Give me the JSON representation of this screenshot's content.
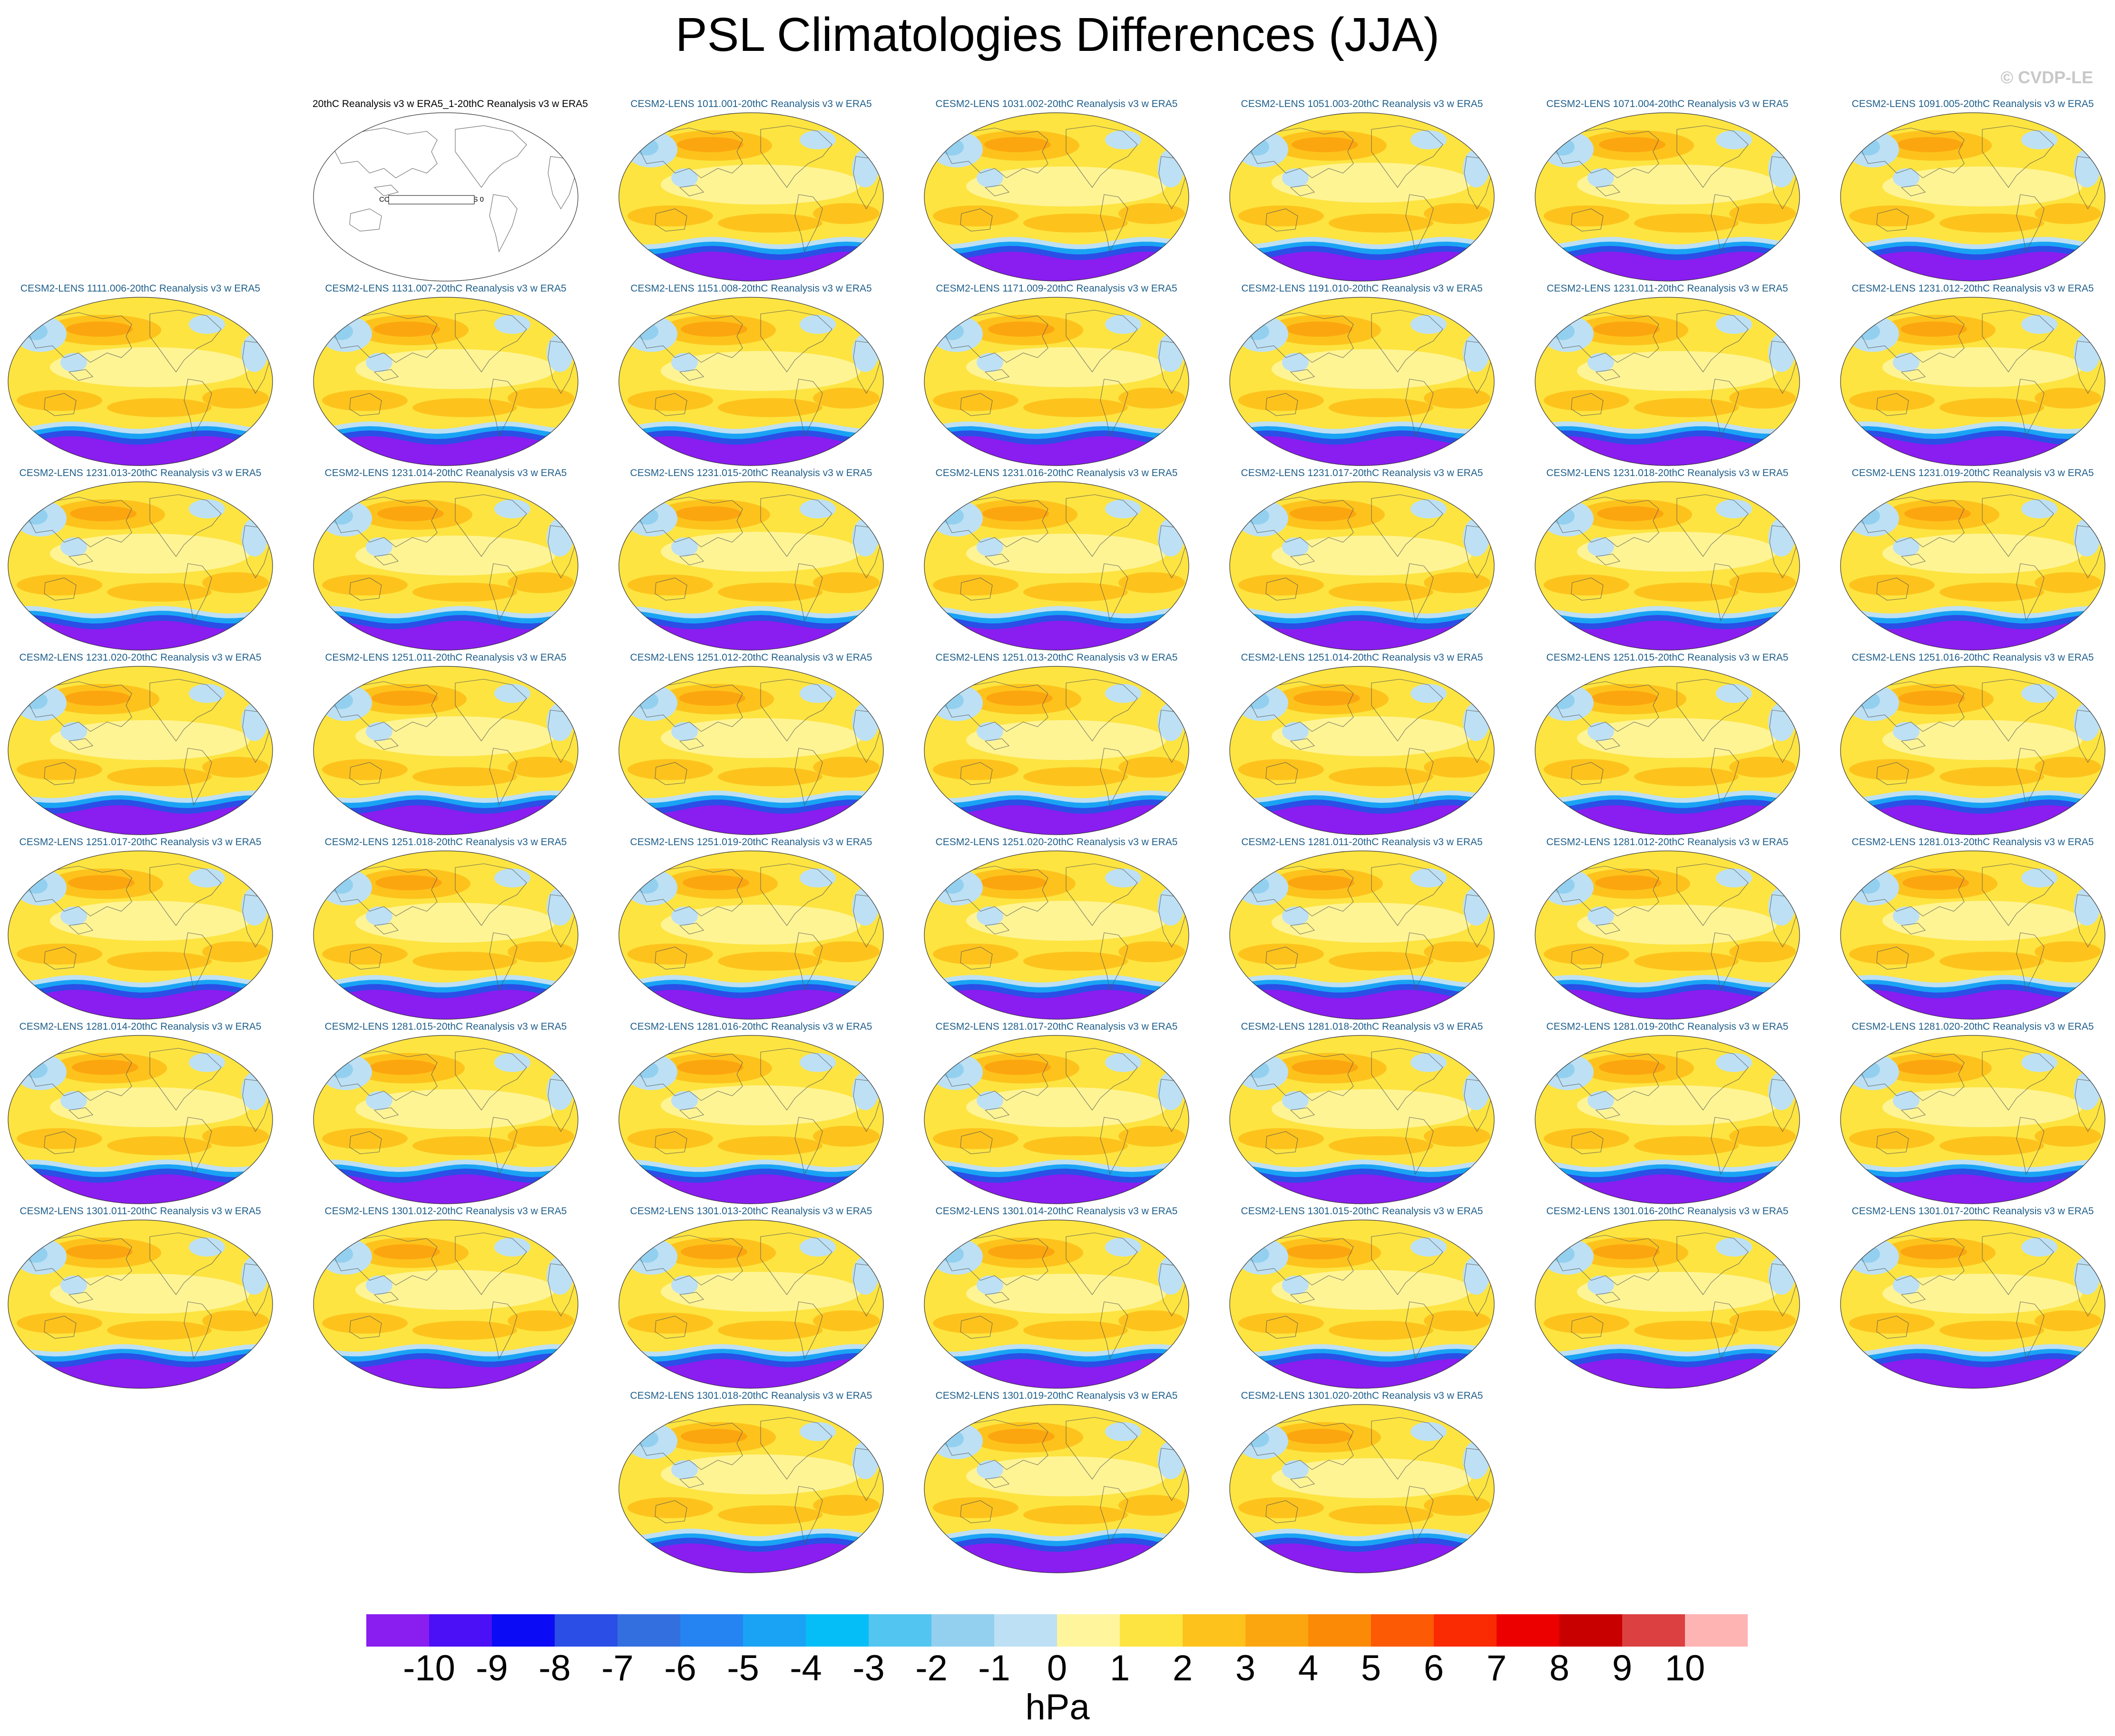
{
  "title": "PSL Climatologies Differences (JJA)",
  "watermark": "© CVDP-LE",
  "constant_field_label": "CONSTANT FIELD - VALUE IS 0",
  "panels": [
    {
      "title": "20thC Reanalysis v3 w ERA5_1-20thC Reanalysis v3 w ERA5",
      "constant": true
    },
    {
      "title": "CESM2-LENS 1011.001-20thC Reanalysis v3 w ERA5"
    },
    {
      "title": "CESM2-LENS 1031.002-20thC Reanalysis v3 w ERA5"
    },
    {
      "title": "CESM2-LENS 1051.003-20thC Reanalysis v3 w ERA5"
    },
    {
      "title": "CESM2-LENS 1071.004-20thC Reanalysis v3 w ERA5"
    },
    {
      "title": "CESM2-LENS 1091.005-20thC Reanalysis v3 w ERA5"
    },
    {
      "title": "CESM2-LENS 1111.006-20thC Reanalysis v3 w ERA5"
    },
    {
      "title": "CESM2-LENS 1131.007-20thC Reanalysis v3 w ERA5"
    },
    {
      "title": "CESM2-LENS 1151.008-20thC Reanalysis v3 w ERA5"
    },
    {
      "title": "CESM2-LENS 1171.009-20thC Reanalysis v3 w ERA5"
    },
    {
      "title": "CESM2-LENS 1191.010-20thC Reanalysis v3 w ERA5"
    },
    {
      "title": "CESM2-LENS 1231.011-20thC Reanalysis v3 w ERA5"
    },
    {
      "title": "CESM2-LENS 1231.012-20thC Reanalysis v3 w ERA5"
    },
    {
      "title": "CESM2-LENS 1231.013-20thC Reanalysis v3 w ERA5"
    },
    {
      "title": "CESM2-LENS 1231.014-20thC Reanalysis v3 w ERA5"
    },
    {
      "title": "CESM2-LENS 1231.015-20thC Reanalysis v3 w ERA5"
    },
    {
      "title": "CESM2-LENS 1231.016-20thC Reanalysis v3 w ERA5"
    },
    {
      "title": "CESM2-LENS 1231.017-20thC Reanalysis v3 w ERA5"
    },
    {
      "title": "CESM2-LENS 1231.018-20thC Reanalysis v3 w ERA5"
    },
    {
      "title": "CESM2-LENS 1231.019-20thC Reanalysis v3 w ERA5"
    },
    {
      "title": "CESM2-LENS 1231.020-20thC Reanalysis v3 w ERA5"
    },
    {
      "title": "CESM2-LENS 1251.011-20thC Reanalysis v3 w ERA5"
    },
    {
      "title": "CESM2-LENS 1251.012-20thC Reanalysis v3 w ERA5"
    },
    {
      "title": "CESM2-LENS 1251.013-20thC Reanalysis v3 w ERA5"
    },
    {
      "title": "CESM2-LENS 1251.014-20thC Reanalysis v3 w ERA5"
    },
    {
      "title": "CESM2-LENS 1251.015-20thC Reanalysis v3 w ERA5"
    },
    {
      "title": "CESM2-LENS 1251.016-20thC Reanalysis v3 w ERA5"
    },
    {
      "title": "CESM2-LENS 1251.017-20thC Reanalysis v3 w ERA5"
    },
    {
      "title": "CESM2-LENS 1251.018-20thC Reanalysis v3 w ERA5"
    },
    {
      "title": "CESM2-LENS 1251.019-20thC Reanalysis v3 w ERA5"
    },
    {
      "title": "CESM2-LENS 1251.020-20thC Reanalysis v3 w ERA5"
    },
    {
      "title": "CESM2-LENS 1281.011-20thC Reanalysis v3 w ERA5"
    },
    {
      "title": "CESM2-LENS 1281.012-20thC Reanalysis v3 w ERA5"
    },
    {
      "title": "CESM2-LENS 1281.013-20thC Reanalysis v3 w ERA5"
    },
    {
      "title": "CESM2-LENS 1281.014-20thC Reanalysis v3 w ERA5"
    },
    {
      "title": "CESM2-LENS 1281.015-20thC Reanalysis v3 w ERA5"
    },
    {
      "title": "CESM2-LENS 1281.016-20thC Reanalysis v3 w ERA5"
    },
    {
      "title": "CESM2-LENS 1281.017-20thC Reanalysis v3 w ERA5"
    },
    {
      "title": "CESM2-LENS 1281.018-20thC Reanalysis v3 w ERA5"
    },
    {
      "title": "CESM2-LENS 1281.019-20thC Reanalysis v3 w ERA5"
    },
    {
      "title": "CESM2-LENS 1281.020-20thC Reanalysis v3 w ERA5"
    },
    {
      "title": "CESM2-LENS 1301.011-20thC Reanalysis v3 w ERA5"
    },
    {
      "title": "CESM2-LENS 1301.012-20thC Reanalysis v3 w ERA5"
    },
    {
      "title": "CESM2-LENS 1301.013-20thC Reanalysis v3 w ERA5"
    },
    {
      "title": "CESM2-LENS 1301.014-20thC Reanalysis v3 w ERA5"
    },
    {
      "title": "CESM2-LENS 1301.015-20thC Reanalysis v3 w ERA5"
    },
    {
      "title": "CESM2-LENS 1301.016-20thC Reanalysis v3 w ERA5"
    },
    {
      "title": "CESM2-LENS 1301.017-20thC Reanalysis v3 w ERA5"
    },
    {
      "title": "CESM2-LENS 1301.018-20thC Reanalysis v3 w ERA5"
    },
    {
      "title": "CESM2-LENS 1301.019-20thC Reanalysis v3 w ERA5"
    },
    {
      "title": "CESM2-LENS 1301.020-20thC Reanalysis v3 w ERA5"
    }
  ],
  "colorbar": {
    "units": "hPa",
    "labels": [
      "-10",
      "-9",
      "-8",
      "-7",
      "-6",
      "-5",
      "-4",
      "-3",
      "-2",
      "-1",
      "0",
      "1",
      "2",
      "3",
      "4",
      "5",
      "6",
      "7",
      "8",
      "9",
      "10"
    ],
    "colors": [
      "#8a1df0",
      "#4b10f5",
      "#0b0bf5",
      "#2a4ee6",
      "#346fe0",
      "#2584f2",
      "#1aa3f5",
      "#05bef7",
      "#52c5f0",
      "#93d0ef",
      "#bde0f4",
      "#fff59d",
      "#fde441",
      "#fdc31c",
      "#fca60f",
      "#fb8a06",
      "#fc5a04",
      "#fa2a02",
      "#ed0000",
      "#c80000",
      "#dc4040",
      "#ffb4b4"
    ]
  },
  "map_colors": {
    "ocean_base": "#fde441",
    "pale_yellow": "#fff59d",
    "orange": "#fdc31c",
    "deep_orange": "#fca60f",
    "light_blue": "#bde0f4",
    "mid_blue": "#93d0ef",
    "blue": "#1aa3f5",
    "deep_blue": "#2a4ee6",
    "violet": "#8a1df0",
    "coast": "#555555"
  }
}
